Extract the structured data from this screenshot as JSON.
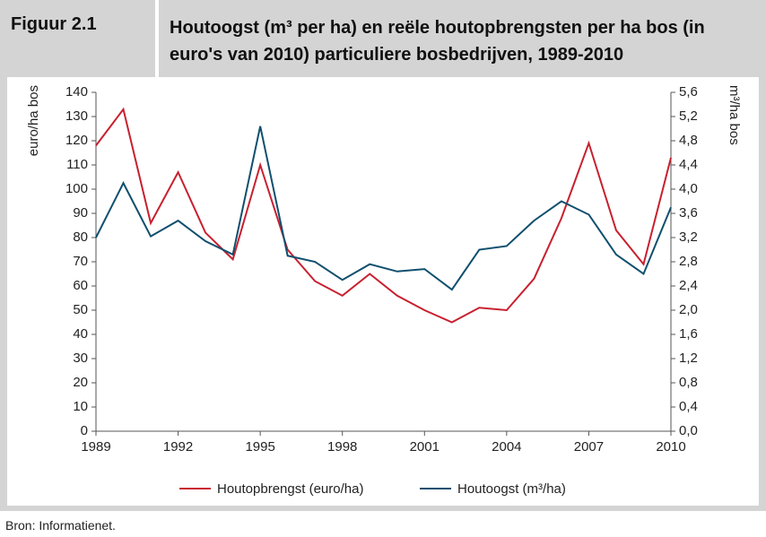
{
  "header": {
    "figure": "Figuur 2.1",
    "title": "Houtoogst (m³ per ha) en reële houtopbrengsten per ha bos (in euro's van 2010) particuliere bosbedrijven, 1989-2010"
  },
  "chart_data": {
    "type": "line",
    "ylabel": "euro/ha bos",
    "y2label": "m³/ha bos",
    "x": [
      1989,
      1990,
      1991,
      1992,
      1993,
      1994,
      1995,
      1996,
      1997,
      1998,
      1999,
      2000,
      2001,
      2002,
      2003,
      2004,
      2005,
      2006,
      2007,
      2008,
      2009,
      2010
    ],
    "xlim": [
      1989,
      2010
    ],
    "xticks": [
      1989,
      1992,
      1995,
      1998,
      2001,
      2004,
      2007,
      2010
    ],
    "ylim": [
      0,
      140
    ],
    "yticks": [
      0,
      10,
      20,
      30,
      40,
      50,
      60,
      70,
      80,
      90,
      100,
      110,
      120,
      130,
      140
    ],
    "y2lim": [
      0,
      5.6
    ],
    "y2ticks": [
      {
        "value": 0,
        "label": "0,0"
      },
      {
        "value": 0.4,
        "label": "0,4"
      },
      {
        "value": 0.8,
        "label": "0,8"
      },
      {
        "value": 1.2,
        "label": "1,2"
      },
      {
        "value": 1.6,
        "label": "1,6"
      },
      {
        "value": 2.0,
        "label": "2,0"
      },
      {
        "value": 2.4,
        "label": "2,4"
      },
      {
        "value": 2.8,
        "label": "2,8"
      },
      {
        "value": 3.2,
        "label": "3,2"
      },
      {
        "value": 3.6,
        "label": "3,6"
      },
      {
        "value": 4.0,
        "label": "4,0"
      },
      {
        "value": 4.4,
        "label": "4,4"
      },
      {
        "value": 4.8,
        "label": "4,8"
      },
      {
        "value": 5.2,
        "label": "5,2"
      },
      {
        "value": 5.6,
        "label": "5,6"
      }
    ],
    "series": [
      {
        "name": "Houtopbrengst (euro/ha)",
        "color": "#c8202f",
        "values": [
          118,
          133,
          86,
          107,
          82,
          71,
          110,
          75,
          62,
          56,
          65,
          56,
          50,
          45,
          51,
          50,
          63,
          88,
          119,
          83,
          69,
          113
        ]
      },
      {
        "name": "Houtoogst (m³/ha)",
        "color": "#0f4f6e",
        "axis": "y2",
        "values": [
          3.2,
          4.1,
          3.22,
          3.48,
          3.14,
          2.92,
          5.04,
          2.9,
          2.8,
          2.5,
          2.76,
          2.64,
          2.68,
          2.34,
          3.0,
          3.06,
          3.48,
          3.8,
          3.58,
          2.92,
          2.6,
          3.7
        ]
      }
    ]
  },
  "source": "Bron: Informatienet."
}
